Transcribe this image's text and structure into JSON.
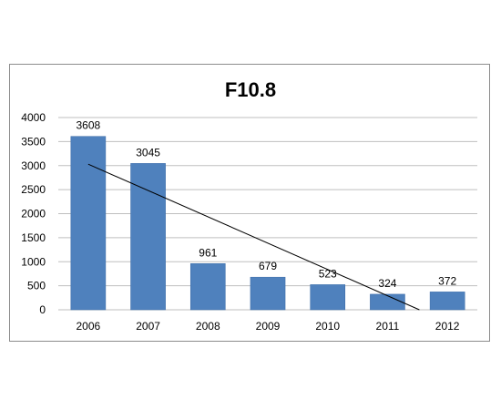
{
  "chart_data": {
    "type": "bar",
    "title": "F10.8",
    "categories": [
      "2006",
      "2007",
      "2008",
      "2009",
      "2010",
      "2011",
      "2012"
    ],
    "values": [
      3608,
      3045,
      961,
      679,
      523,
      324,
      372
    ],
    "ylim": [
      0,
      4000
    ],
    "yticks": [
      0,
      500,
      1000,
      1500,
      2000,
      2500,
      3000,
      3500,
      4000
    ],
    "grid": true,
    "legend": "none",
    "trendline": {
      "type": "linear",
      "from_category": "2006",
      "to_category": "2011"
    },
    "colors": {
      "bar": "#4f81bd",
      "bar_edge": "#3a6aa6",
      "grid": "#bfbfbf",
      "trend": "#000000",
      "frame": "#8c8c8c"
    }
  }
}
